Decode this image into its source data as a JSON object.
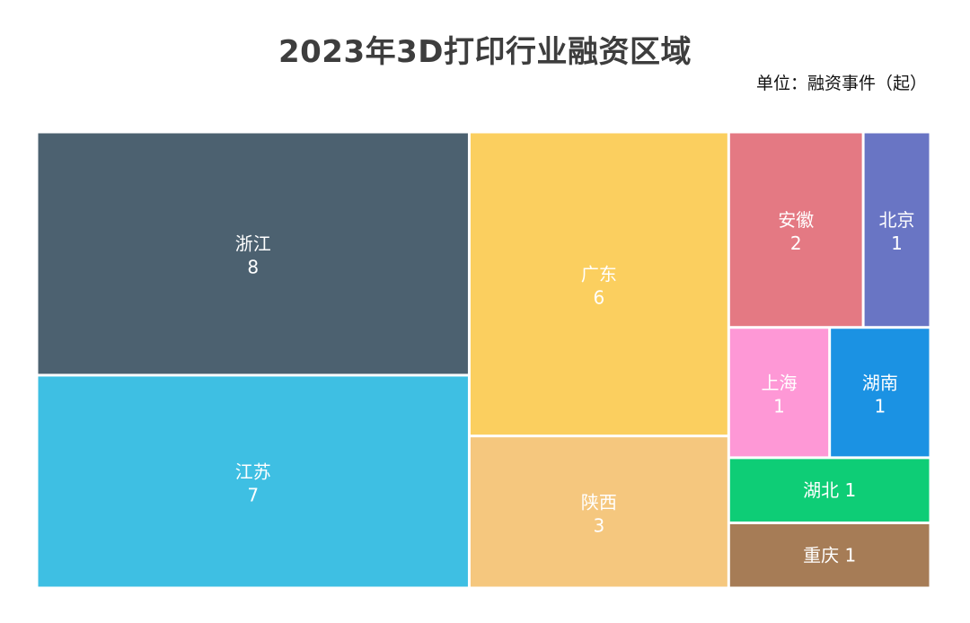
{
  "chart_data": {
    "type": "treemap",
    "title": "2023年3D打印行业融资区域",
    "subtitle": "单位：融资事件（起）",
    "items": [
      {
        "name": "浙江",
        "value": 8,
        "color": "#4c6170",
        "label_style": "stacked"
      },
      {
        "name": "江苏",
        "value": 7,
        "color": "#3ebfe3",
        "label_style": "stacked"
      },
      {
        "name": "广东",
        "value": 6,
        "color": "#fbcf5f",
        "label_style": "stacked"
      },
      {
        "name": "陕西",
        "value": 3,
        "color": "#f5c77e",
        "label_style": "stacked"
      },
      {
        "name": "安徽",
        "value": 2,
        "color": "#e47983",
        "label_style": "stacked"
      },
      {
        "name": "北京",
        "value": 1,
        "color": "#6975c4",
        "label_style": "stacked"
      },
      {
        "name": "上海",
        "value": 1,
        "color": "#fe98d6",
        "label_style": "stacked"
      },
      {
        "name": "湖南",
        "value": 1,
        "color": "#1b92e3",
        "label_style": "stacked"
      },
      {
        "name": "湖北",
        "value": 1,
        "color": "#0ecd76",
        "label_style": "inline"
      },
      {
        "name": "重庆",
        "value": 1,
        "color": "#a67c56",
        "label_style": "inline"
      }
    ]
  }
}
